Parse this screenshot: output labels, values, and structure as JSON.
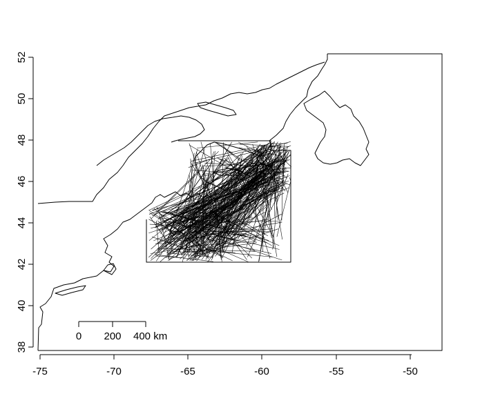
{
  "map": {
    "x_ticks": [
      "-75",
      "-70",
      "-65",
      "-60",
      "-55",
      "-50"
    ],
    "y_ticks": [
      "38",
      "40",
      "42",
      "44",
      "46",
      "48",
      "50",
      "52"
    ],
    "scale_bar": {
      "labels": [
        "0",
        "200",
        "400 km"
      ]
    },
    "colors": {
      "line": "#000000",
      "background": "#ffffff"
    }
  }
}
